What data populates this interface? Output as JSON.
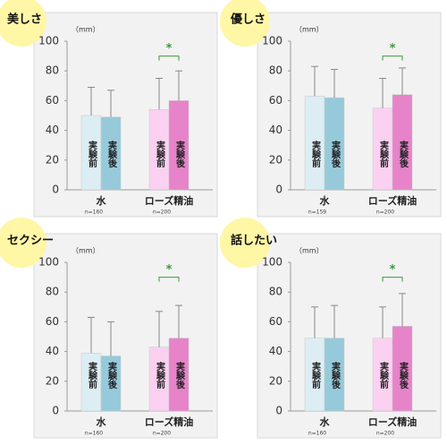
{
  "chart_data": [
    {
      "type": "bar",
      "title": "美しさ",
      "ylabel": "（mm）",
      "categories": [
        "水",
        "ローズ精油"
      ],
      "sample_sizes": [
        "n=160",
        "n=200"
      ],
      "annotation": "*",
      "ylim": [
        0,
        100
      ],
      "yticks": [
        0,
        20,
        40,
        60,
        80,
        100
      ],
      "series": [
        {
          "name": "実験前",
          "colors": [
            "#dcedf4",
            "#fbd0f1"
          ],
          "values": [
            50,
            54
          ],
          "errors": [
            19,
            21
          ]
        },
        {
          "name": "実験後",
          "colors": [
            "#96cadb",
            "#e683c9"
          ],
          "values": [
            49,
            60
          ],
          "errors": [
            18,
            20
          ]
        }
      ]
    },
    {
      "type": "bar",
      "title": "優しさ",
      "ylabel": "（mm）",
      "categories": [
        "水",
        "ローズ精油"
      ],
      "sample_sizes": [
        "n=159",
        "n=200"
      ],
      "annotation": "*",
      "ylim": [
        0,
        100
      ],
      "yticks": [
        0,
        20,
        40,
        60,
        80,
        100
      ],
      "series": [
        {
          "name": "実験前",
          "colors": [
            "#dcedf4",
            "#fbd0f1"
          ],
          "values": [
            63,
            55
          ],
          "errors": [
            20,
            20
          ]
        },
        {
          "name": "実験後",
          "colors": [
            "#96cadb",
            "#e683c9"
          ],
          "values": [
            62,
            64
          ],
          "errors": [
            19,
            18
          ]
        }
      ]
    },
    {
      "type": "bar",
      "title": "セクシー",
      "ylabel": "（mm）",
      "categories": [
        "水",
        "ローズ精油"
      ],
      "sample_sizes": [
        "n=160",
        "n=200"
      ],
      "annotation": "*",
      "ylim": [
        0,
        100
      ],
      "yticks": [
        0,
        20,
        40,
        60,
        80,
        100
      ],
      "series": [
        {
          "name": "実験前",
          "colors": [
            "#dcedf4",
            "#fbd0f1"
          ],
          "values": [
            39,
            43
          ],
          "errors": [
            24,
            24
          ]
        },
        {
          "name": "実験後",
          "colors": [
            "#96cadb",
            "#e683c9"
          ],
          "values": [
            37,
            49
          ],
          "errors": [
            23,
            22
          ]
        }
      ]
    },
    {
      "type": "bar",
      "title": "話したい",
      "ylabel": "（mm）",
      "categories": [
        "水",
        "ローズ精油"
      ],
      "sample_sizes": [
        "n=160",
        "n=200"
      ],
      "annotation": "*",
      "ylim": [
        0,
        100
      ],
      "yticks": [
        0,
        20,
        40,
        60,
        80,
        100
      ],
      "series": [
        {
          "name": "実験前",
          "colors": [
            "#dcedf4",
            "#fbd0f1"
          ],
          "values": [
            49,
            49
          ],
          "errors": [
            21,
            21
          ]
        },
        {
          "name": "実験後",
          "colors": [
            "#96cadb",
            "#e683c9"
          ],
          "values": [
            49,
            57
          ],
          "errors": [
            22,
            22
          ]
        }
      ]
    }
  ]
}
